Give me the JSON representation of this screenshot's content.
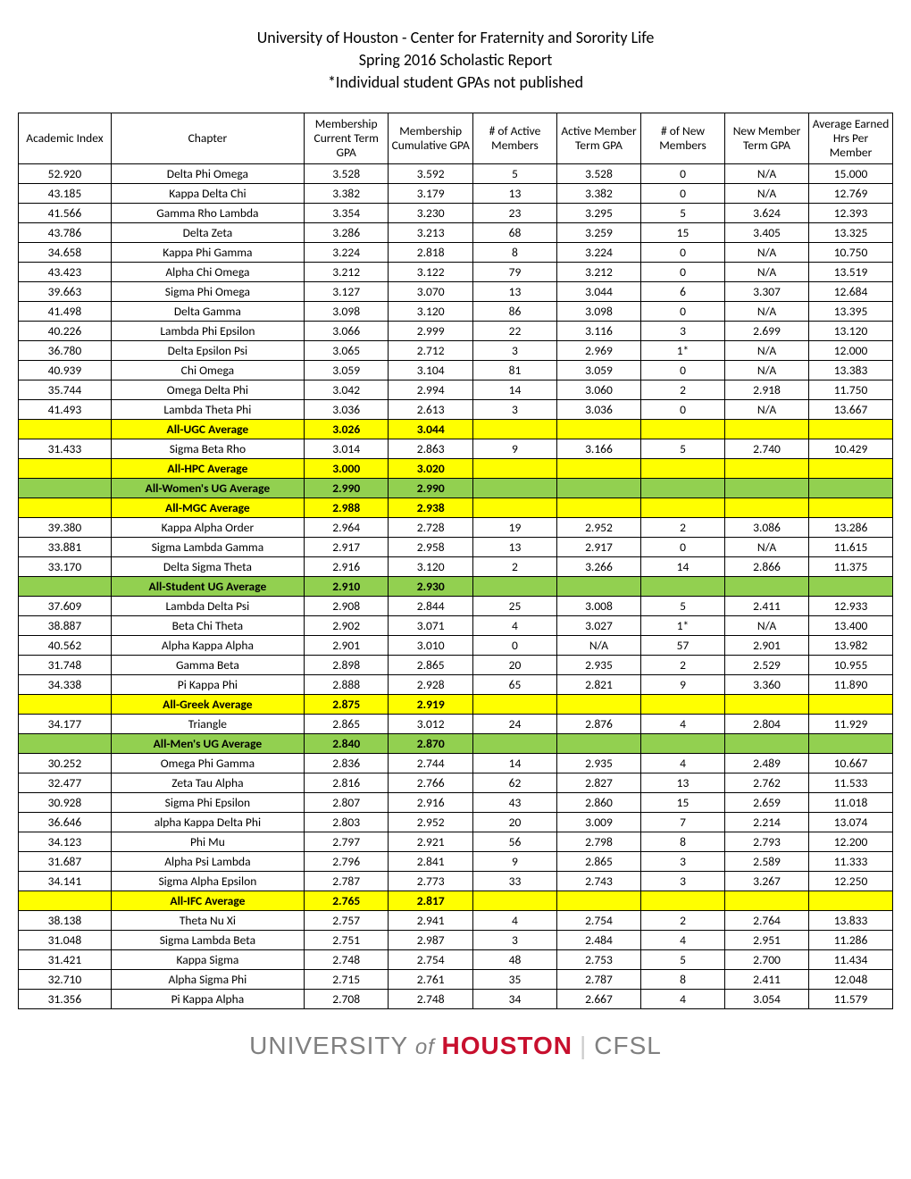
{
  "header": {
    "line1": "University of Houston - Center for Fraternity and Sorority Life",
    "line2": "Spring 2016  Scholastic Report",
    "line3": "*Individual student GPAs not published"
  },
  "columns": [
    "Academic Index",
    "Chapter",
    "Membership Current Term GPA",
    "Membership Cumulative GPA",
    "# of Active Members",
    "Active Member Term GPA",
    "# of New Members",
    "New Member Term GPA",
    "Average Earned Hrs Per Member"
  ],
  "highlight_colors": {
    "yellow": "#ffff00",
    "green": "#92d050"
  },
  "rows": [
    {
      "type": "data",
      "cells": [
        "52.920",
        "Delta Phi Omega",
        "3.528",
        "3.592",
        "5",
        "3.528",
        "0",
        "N/A",
        "15.000"
      ]
    },
    {
      "type": "data",
      "cells": [
        "43.185",
        "Kappa Delta Chi",
        "3.382",
        "3.179",
        "13",
        "3.382",
        "0",
        "N/A",
        "12.769"
      ]
    },
    {
      "type": "data",
      "cells": [
        "41.566",
        "Gamma Rho Lambda",
        "3.354",
        "3.230",
        "23",
        "3.295",
        "5",
        "3.624",
        "12.393"
      ]
    },
    {
      "type": "data",
      "cells": [
        "43.786",
        "Delta Zeta",
        "3.286",
        "3.213",
        "68",
        "3.259",
        "15",
        "3.405",
        "13.325"
      ]
    },
    {
      "type": "data",
      "cells": [
        "34.658",
        "Kappa Phi Gamma",
        "3.224",
        "2.818",
        "8",
        "3.224",
        "0",
        "N/A",
        "10.750"
      ]
    },
    {
      "type": "data",
      "cells": [
        "43.423",
        "Alpha Chi Omega",
        "3.212",
        "3.122",
        "79",
        "3.212",
        "0",
        "N/A",
        "13.519"
      ]
    },
    {
      "type": "data",
      "cells": [
        "39.663",
        "Sigma Phi Omega",
        "3.127",
        "3.070",
        "13",
        "3.044",
        "6",
        "3.307",
        "12.684"
      ]
    },
    {
      "type": "data",
      "cells": [
        "41.498",
        "Delta Gamma",
        "3.098",
        "3.120",
        "86",
        "3.098",
        "0",
        "N/A",
        "13.395"
      ]
    },
    {
      "type": "data",
      "cells": [
        "40.226",
        "Lambda Phi Epsilon",
        "3.066",
        "2.999",
        "22",
        "3.116",
        "3",
        "2.699",
        "13.120"
      ]
    },
    {
      "type": "data",
      "cells": [
        "36.780",
        "Delta Epsilon Psi",
        "3.065",
        "2.712",
        "3",
        "2.969",
        "1*",
        "N/A",
        "12.000"
      ]
    },
    {
      "type": "data",
      "cells": [
        "40.939",
        "Chi Omega",
        "3.059",
        "3.104",
        "81",
        "3.059",
        "0",
        "N/A",
        "13.383"
      ]
    },
    {
      "type": "data",
      "cells": [
        "35.744",
        "Omega Delta Phi",
        "3.042",
        "2.994",
        "14",
        "3.060",
        "2",
        "2.918",
        "11.750"
      ]
    },
    {
      "type": "data",
      "cells": [
        "41.493",
        "Lambda Theta Phi",
        "3.036",
        "2.613",
        "3",
        "3.036",
        "0",
        "N/A",
        "13.667"
      ]
    },
    {
      "type": "yellow",
      "cells": [
        "",
        "All-UGC Average",
        "3.026",
        "3.044",
        "",
        "",
        "",
        "",
        ""
      ]
    },
    {
      "type": "data",
      "cells": [
        "31.433",
        "Sigma Beta Rho",
        "3.014",
        "2.863",
        "9",
        "3.166",
        "5",
        "2.740",
        "10.429"
      ]
    },
    {
      "type": "yellow",
      "cells": [
        "",
        "All-HPC Average",
        "3.000",
        "3.020",
        "",
        "",
        "",
        "",
        ""
      ]
    },
    {
      "type": "green",
      "cells": [
        "",
        "All-Women's UG Average",
        "2.990",
        "2.990",
        "",
        "",
        "",
        "",
        ""
      ]
    },
    {
      "type": "yellow",
      "cells": [
        "",
        "All-MGC Average",
        "2.988",
        "2.938",
        "",
        "",
        "",
        "",
        ""
      ]
    },
    {
      "type": "data",
      "cells": [
        "39.380",
        "Kappa Alpha Order",
        "2.964",
        "2.728",
        "19",
        "2.952",
        "2",
        "3.086",
        "13.286"
      ]
    },
    {
      "type": "data",
      "cells": [
        "33.881",
        "Sigma Lambda Gamma",
        "2.917",
        "2.958",
        "13",
        "2.917",
        "0",
        "N/A",
        "11.615"
      ]
    },
    {
      "type": "data",
      "cells": [
        "33.170",
        "Delta Sigma Theta",
        "2.916",
        "3.120",
        "2",
        "3.266",
        "14",
        "2.866",
        "11.375"
      ]
    },
    {
      "type": "green",
      "cells": [
        "",
        "All-Student UG Average",
        "2.910",
        "2.930",
        "",
        "",
        "",
        "",
        ""
      ]
    },
    {
      "type": "data",
      "cells": [
        "37.609",
        "Lambda Delta Psi",
        "2.908",
        "2.844",
        "25",
        "3.008",
        "5",
        "2.411",
        "12.933"
      ]
    },
    {
      "type": "data",
      "cells": [
        "38.887",
        "Beta Chi Theta",
        "2.902",
        "3.071",
        "4",
        "3.027",
        "1*",
        "N/A",
        "13.400"
      ]
    },
    {
      "type": "data",
      "cells": [
        "40.562",
        "Alpha Kappa Alpha",
        "2.901",
        "3.010",
        "0",
        "N/A",
        "57",
        "2.901",
        "13.982"
      ]
    },
    {
      "type": "data",
      "cells": [
        "31.748",
        "Gamma Beta",
        "2.898",
        "2.865",
        "20",
        "2.935",
        "2",
        "2.529",
        "10.955"
      ]
    },
    {
      "type": "data",
      "cells": [
        "34.338",
        "Pi Kappa Phi",
        "2.888",
        "2.928",
        "65",
        "2.821",
        "9",
        "3.360",
        "11.890"
      ]
    },
    {
      "type": "yellow",
      "cells": [
        "",
        "All-Greek Average",
        "2.875",
        "2.919",
        "",
        "",
        "",
        "",
        ""
      ]
    },
    {
      "type": "data",
      "cells": [
        "34.177",
        "Triangle",
        "2.865",
        "3.012",
        "24",
        "2.876",
        "4",
        "2.804",
        "11.929"
      ]
    },
    {
      "type": "green",
      "cells": [
        "",
        "All-Men's UG Average",
        "2.840",
        "2.870",
        "",
        "",
        "",
        "",
        ""
      ]
    },
    {
      "type": "data",
      "cells": [
        "30.252",
        "Omega Phi Gamma",
        "2.836",
        "2.744",
        "14",
        "2.935",
        "4",
        "2.489",
        "10.667"
      ]
    },
    {
      "type": "data",
      "cells": [
        "32.477",
        "Zeta Tau Alpha",
        "2.816",
        "2.766",
        "62",
        "2.827",
        "13",
        "2.762",
        "11.533"
      ]
    },
    {
      "type": "data",
      "cells": [
        "30.928",
        "Sigma Phi Epsilon",
        "2.807",
        "2.916",
        "43",
        "2.860",
        "15",
        "2.659",
        "11.018"
      ]
    },
    {
      "type": "data",
      "cells": [
        "36.646",
        "alpha Kappa Delta Phi",
        "2.803",
        "2.952",
        "20",
        "3.009",
        "7",
        "2.214",
        "13.074"
      ]
    },
    {
      "type": "data",
      "cells": [
        "34.123",
        "Phi Mu",
        "2.797",
        "2.921",
        "56",
        "2.798",
        "8",
        "2.793",
        "12.200"
      ]
    },
    {
      "type": "data",
      "cells": [
        "31.687",
        "Alpha Psi Lambda",
        "2.796",
        "2.841",
        "9",
        "2.865",
        "3",
        "2.589",
        "11.333"
      ]
    },
    {
      "type": "data",
      "cells": [
        "34.141",
        "Sigma Alpha Epsilon",
        "2.787",
        "2.773",
        "33",
        "2.743",
        "3",
        "3.267",
        "12.250"
      ]
    },
    {
      "type": "yellow",
      "cells": [
        "",
        "All-IFC Average",
        "2.765",
        "2.817",
        "",
        "",
        "",
        "",
        ""
      ]
    },
    {
      "type": "data",
      "cells": [
        "38.138",
        "Theta Nu Xi",
        "2.757",
        "2.941",
        "4",
        "2.754",
        "2",
        "2.764",
        "13.833"
      ]
    },
    {
      "type": "data",
      "cells": [
        "31.048",
        "Sigma Lambda Beta",
        "2.751",
        "2.987",
        "3",
        "2.484",
        "4",
        "2.951",
        "11.286"
      ]
    },
    {
      "type": "data",
      "cells": [
        "31.421",
        "Kappa Sigma",
        "2.748",
        "2.754",
        "48",
        "2.753",
        "5",
        "2.700",
        "11.434"
      ]
    },
    {
      "type": "data",
      "cells": [
        "32.710",
        "Alpha Sigma Phi",
        "2.715",
        "2.761",
        "35",
        "2.787",
        "8",
        "2.411",
        "12.048"
      ]
    },
    {
      "type": "data",
      "cells": [
        "31.356",
        "Pi Kappa Alpha",
        "2.708",
        "2.748",
        "34",
        "2.667",
        "4",
        "3.054",
        "11.579"
      ]
    }
  ],
  "footer": {
    "university": "UNIVERSITY",
    "of": "of",
    "houston": "HOUSTON",
    "cfsl": "CFSL"
  }
}
